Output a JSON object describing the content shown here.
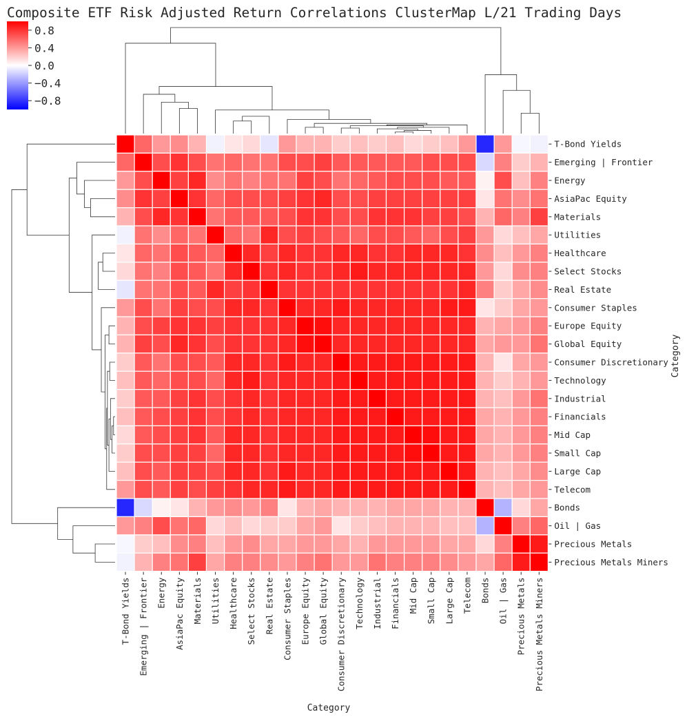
{
  "chart_data": {
    "type": "heatmap",
    "subtype": "clustermap",
    "title": "Composite ETF Risk Adjusted Return Correlations ClusterMap L/21 Trading Days",
    "xlabel": "Category",
    "ylabel": "Category",
    "labels": [
      "T-Bond Yields",
      "Emerging | Frontier",
      "Energy",
      "AsiaPac Equity",
      "Materials",
      "Utilities",
      "Healthcare",
      "Select Stocks",
      "Real Estate",
      "Consumer Staples",
      "Europe Equity",
      "Global Equity",
      "Consumer Discretionary",
      "Technology",
      "Industrial",
      "Financials",
      "Mid Cap",
      "Small Cap",
      "Large Cap",
      "Telecom",
      "Bonds",
      "Oil | Gas",
      "Precious Metals",
      "Precious Metals Miners"
    ],
    "values": [
      [
        1.0,
        0.6,
        0.4,
        0.45,
        0.3,
        -0.05,
        0.1,
        0.15,
        -0.1,
        0.4,
        0.3,
        0.3,
        0.2,
        0.25,
        0.2,
        0.25,
        0.15,
        0.2,
        0.25,
        0.4,
        -0.85,
        0.4,
        -0.03,
        -0.05
      ],
      [
        0.6,
        1.0,
        0.7,
        0.8,
        0.7,
        0.55,
        0.6,
        0.55,
        0.55,
        0.7,
        0.7,
        0.75,
        0.65,
        0.65,
        0.65,
        0.65,
        0.65,
        0.7,
        0.7,
        0.7,
        -0.15,
        0.5,
        0.2,
        0.3
      ],
      [
        0.4,
        0.7,
        1.0,
        0.75,
        0.85,
        0.45,
        0.55,
        0.5,
        0.55,
        0.55,
        0.75,
        0.7,
        0.55,
        0.6,
        0.65,
        0.7,
        0.7,
        0.7,
        0.65,
        0.65,
        0.05,
        0.7,
        0.25,
        0.5
      ],
      [
        0.45,
        0.8,
        0.75,
        1.0,
        0.8,
        0.6,
        0.7,
        0.7,
        0.7,
        0.75,
        0.8,
        0.85,
        0.7,
        0.7,
        0.75,
        0.75,
        0.75,
        0.75,
        0.75,
        0.75,
        0.1,
        0.55,
        0.45,
        0.55
      ],
      [
        0.3,
        0.7,
        0.85,
        0.8,
        1.0,
        0.55,
        0.65,
        0.65,
        0.65,
        0.7,
        0.8,
        0.8,
        0.7,
        0.7,
        0.8,
        0.8,
        0.8,
        0.75,
        0.75,
        0.7,
        0.3,
        0.6,
        0.5,
        0.75
      ],
      [
        -0.05,
        0.55,
        0.45,
        0.6,
        0.55,
        1.0,
        0.6,
        0.55,
        0.85,
        0.7,
        0.75,
        0.7,
        0.65,
        0.6,
        0.7,
        0.7,
        0.65,
        0.6,
        0.7,
        0.75,
        0.4,
        0.15,
        0.25,
        0.35
      ],
      [
        0.1,
        0.6,
        0.55,
        0.7,
        0.65,
        0.6,
        1.0,
        0.85,
        0.75,
        0.85,
        0.8,
        0.8,
        0.85,
        0.85,
        0.8,
        0.8,
        0.85,
        0.85,
        0.85,
        0.8,
        0.45,
        0.25,
        0.4,
        0.5
      ],
      [
        0.15,
        0.55,
        0.5,
        0.7,
        0.65,
        0.55,
        0.85,
        1.0,
        0.8,
        0.85,
        0.8,
        0.8,
        0.85,
        0.9,
        0.85,
        0.85,
        0.85,
        0.85,
        0.85,
        0.85,
        0.4,
        0.15,
        0.45,
        0.5
      ],
      [
        -0.1,
        0.55,
        0.55,
        0.7,
        0.65,
        0.85,
        0.75,
        0.8,
        1.0,
        0.8,
        0.8,
        0.8,
        0.8,
        0.8,
        0.8,
        0.8,
        0.8,
        0.8,
        0.8,
        0.85,
        0.5,
        0.2,
        0.35,
        0.45
      ],
      [
        0.4,
        0.7,
        0.55,
        0.75,
        0.7,
        0.7,
        0.85,
        0.85,
        0.8,
        1.0,
        0.85,
        0.85,
        0.9,
        0.85,
        0.85,
        0.85,
        0.85,
        0.85,
        0.9,
        0.9,
        0.1,
        0.2,
        0.35,
        0.4
      ],
      [
        0.3,
        0.7,
        0.75,
        0.8,
        0.8,
        0.75,
        0.8,
        0.8,
        0.8,
        0.85,
        1.0,
        0.95,
        0.85,
        0.85,
        0.85,
        0.85,
        0.85,
        0.85,
        0.85,
        0.85,
        0.3,
        0.35,
        0.4,
        0.5
      ],
      [
        0.3,
        0.75,
        0.7,
        0.85,
        0.8,
        0.7,
        0.8,
        0.8,
        0.8,
        0.85,
        0.95,
        1.0,
        0.85,
        0.85,
        0.85,
        0.85,
        0.85,
        0.85,
        0.85,
        0.85,
        0.35,
        0.4,
        0.4,
        0.55
      ],
      [
        0.2,
        0.65,
        0.55,
        0.7,
        0.7,
        0.65,
        0.85,
        0.85,
        0.8,
        0.9,
        0.85,
        0.85,
        1.0,
        0.9,
        0.9,
        0.9,
        0.9,
        0.9,
        0.9,
        0.9,
        0.3,
        0.1,
        0.35,
        0.4
      ],
      [
        0.25,
        0.65,
        0.6,
        0.7,
        0.7,
        0.6,
        0.85,
        0.9,
        0.8,
        0.85,
        0.85,
        0.85,
        0.9,
        1.0,
        0.9,
        0.9,
        0.9,
        0.9,
        0.9,
        0.9,
        0.3,
        0.2,
        0.3,
        0.4
      ],
      [
        0.2,
        0.65,
        0.65,
        0.75,
        0.8,
        0.7,
        0.8,
        0.85,
        0.8,
        0.85,
        0.85,
        0.85,
        0.9,
        0.9,
        1.0,
        0.9,
        0.9,
        0.9,
        0.9,
        0.9,
        0.3,
        0.25,
        0.4,
        0.55
      ],
      [
        0.25,
        0.65,
        0.7,
        0.75,
        0.8,
        0.7,
        0.8,
        0.85,
        0.8,
        0.85,
        0.85,
        0.85,
        0.9,
        0.9,
        0.9,
        1.0,
        0.9,
        0.9,
        0.9,
        0.9,
        0.35,
        0.3,
        0.4,
        0.5
      ],
      [
        0.15,
        0.65,
        0.7,
        0.75,
        0.8,
        0.65,
        0.85,
        0.85,
        0.8,
        0.85,
        0.85,
        0.85,
        0.9,
        0.9,
        0.9,
        0.9,
        1.0,
        0.95,
        0.9,
        0.9,
        0.35,
        0.3,
        0.4,
        0.5
      ],
      [
        0.2,
        0.7,
        0.7,
        0.75,
        0.75,
        0.6,
        0.85,
        0.85,
        0.8,
        0.85,
        0.85,
        0.85,
        0.9,
        0.9,
        0.9,
        0.9,
        0.95,
        1.0,
        0.9,
        0.9,
        0.35,
        0.3,
        0.4,
        0.5
      ],
      [
        0.25,
        0.7,
        0.65,
        0.75,
        0.75,
        0.7,
        0.85,
        0.85,
        0.8,
        0.9,
        0.85,
        0.85,
        0.9,
        0.9,
        0.9,
        0.9,
        0.9,
        0.9,
        1.0,
        0.9,
        0.3,
        0.25,
        0.35,
        0.45
      ],
      [
        0.4,
        0.7,
        0.65,
        0.75,
        0.7,
        0.75,
        0.8,
        0.85,
        0.85,
        0.9,
        0.85,
        0.85,
        0.9,
        0.9,
        0.9,
        0.9,
        0.9,
        0.9,
        0.9,
        1.0,
        0.3,
        0.25,
        0.35,
        0.4
      ],
      [
        -0.85,
        -0.15,
        0.05,
        0.1,
        0.3,
        0.4,
        0.45,
        0.4,
        0.5,
        0.1,
        0.3,
        0.35,
        0.3,
        0.3,
        0.3,
        0.35,
        0.35,
        0.35,
        0.3,
        0.3,
        1.0,
        -0.3,
        0.15,
        0.35
      ],
      [
        0.4,
        0.5,
        0.7,
        0.55,
        0.6,
        0.15,
        0.25,
        0.15,
        0.2,
        0.2,
        0.35,
        0.4,
        0.1,
        0.2,
        0.25,
        0.3,
        0.3,
        0.3,
        0.25,
        0.25,
        -0.3,
        1.0,
        0.5,
        0.6
      ],
      [
        -0.03,
        0.2,
        0.25,
        0.45,
        0.5,
        0.25,
        0.4,
        0.45,
        0.35,
        0.35,
        0.4,
        0.4,
        0.35,
        0.3,
        0.4,
        0.4,
        0.4,
        0.4,
        0.35,
        0.35,
        0.15,
        0.5,
        1.0,
        0.9
      ],
      [
        -0.05,
        0.3,
        0.5,
        0.55,
        0.75,
        0.35,
        0.5,
        0.5,
        0.45,
        0.4,
        0.5,
        0.55,
        0.4,
        0.4,
        0.55,
        0.5,
        0.5,
        0.5,
        0.45,
        0.4,
        0.35,
        0.6,
        0.9,
        1.0
      ]
    ],
    "vmin": -1,
    "vmax": 1,
    "colormap": [
      "#0000ff",
      "#ffffff",
      "#ff0000"
    ],
    "colorbar": {
      "ticks": [
        0.8,
        0.4,
        0.0,
        -0.4,
        -0.8
      ],
      "tick_labels": [
        "0.8",
        "0.4",
        "0.0",
        "−0.4",
        "−0.8"
      ],
      "placement": "top-left"
    },
    "dendrogram": {
      "linkage": [
        [
          15,
          16,
          0.02
        ],
        [
          17,
          24,
          0.04
        ],
        [
          14,
          25,
          0.06
        ],
        [
          12,
          13,
          0.07
        ],
        [
          10,
          11,
          0.08
        ],
        [
          26,
          18,
          0.08
        ],
        [
          27,
          29,
          0.1
        ],
        [
          30,
          19,
          0.11
        ],
        [
          28,
          31,
          0.13
        ],
        [
          6,
          7,
          0.16
        ],
        [
          9,
          32,
          0.18
        ],
        [
          33,
          8,
          0.22
        ],
        [
          22,
          23,
          0.26
        ],
        [
          34,
          5,
          0.3
        ],
        [
          3,
          4,
          0.32
        ],
        [
          2,
          38,
          0.4
        ],
        [
          21,
          36,
          0.55
        ],
        [
          1,
          39,
          0.5
        ],
        [
          41,
          37,
          0.6
        ],
        [
          20,
          40,
          0.75
        ],
        [
          0,
          42,
          1.15
        ],
        [
          43,
          44,
          1.35
        ]
      ],
      "max_height": 1.35
    }
  }
}
